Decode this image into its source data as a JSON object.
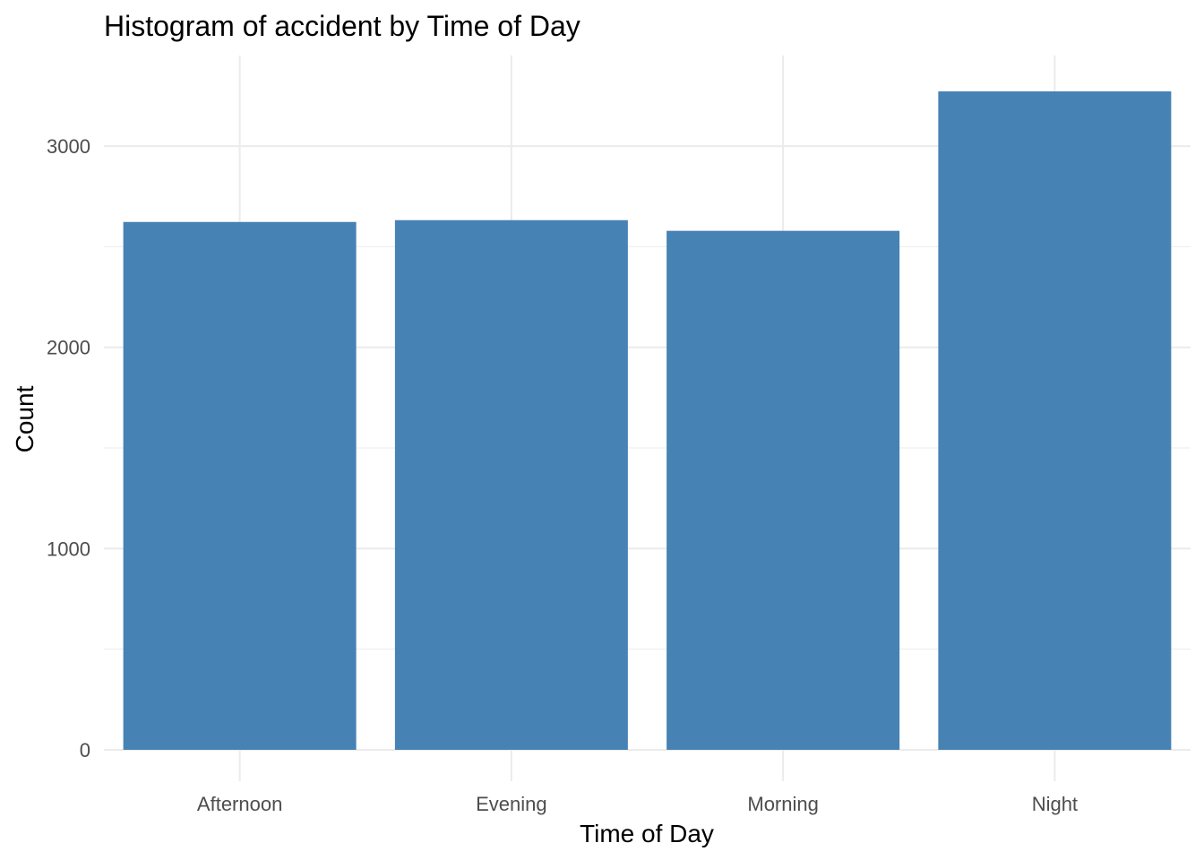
{
  "chart_data": {
    "type": "bar",
    "title": "Histogram of accident by Time of Day",
    "xlabel": "Time of Day",
    "ylabel": "Count",
    "categories": [
      "Afternoon",
      "Evening",
      "Morning",
      "Night"
    ],
    "values": [
      2623,
      2632,
      2579,
      3272
    ],
    "ylim": [
      0,
      3450
    ],
    "yticks": [
      0,
      1000,
      2000,
      3000
    ],
    "grid": true,
    "colors": {
      "bar": "#4682B4",
      "grid": "#ebebeb",
      "tick_text": "#4d4d4d"
    }
  }
}
